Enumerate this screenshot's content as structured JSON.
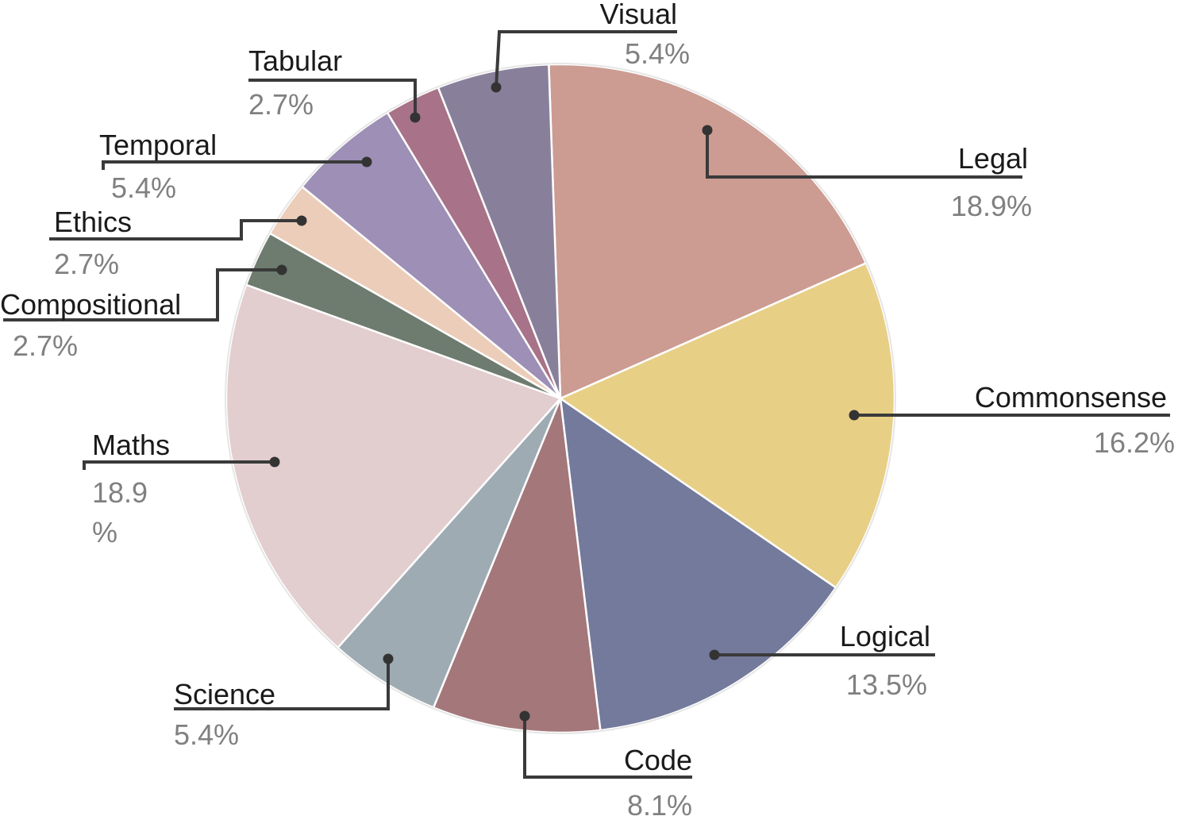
{
  "chart_data": {
    "type": "pie",
    "slices": [
      {
        "label": "Legal",
        "value": 18.9,
        "value_label": "18.9%",
        "color": "#cc9b92"
      },
      {
        "label": "Commonsense",
        "value": 16.2,
        "value_label": "16.2%",
        "color": "#e8cf86"
      },
      {
        "label": "Logical",
        "value": 13.5,
        "value_label": "13.5%",
        "color": "#747a9b"
      },
      {
        "label": "Code",
        "value": 8.1,
        "value_label": "8.1%",
        "color": "#a4777b"
      },
      {
        "label": "Science",
        "value": 5.4,
        "value_label": "5.4%",
        "color": "#9eabb3"
      },
      {
        "label": "Maths",
        "value": 18.9,
        "value_label": "18.9\n%",
        "color": "#e2cdcf"
      },
      {
        "label": "Compositional",
        "value": 2.7,
        "value_label": "2.7%",
        "color": "#6e7b6f"
      },
      {
        "label": "Ethics",
        "value": 2.7,
        "value_label": "2.7%",
        "color": "#ebcdb9"
      },
      {
        "label": "Temporal",
        "value": 5.4,
        "value_label": "5.4%",
        "color": "#9d8fb5"
      },
      {
        "label": "Tabular",
        "value": 2.7,
        "value_label": "2.7%",
        "color": "#a87288"
      },
      {
        "label": "Visual",
        "value": 5.4,
        "value_label": "5.4%",
        "color": "#88809b"
      }
    ]
  }
}
